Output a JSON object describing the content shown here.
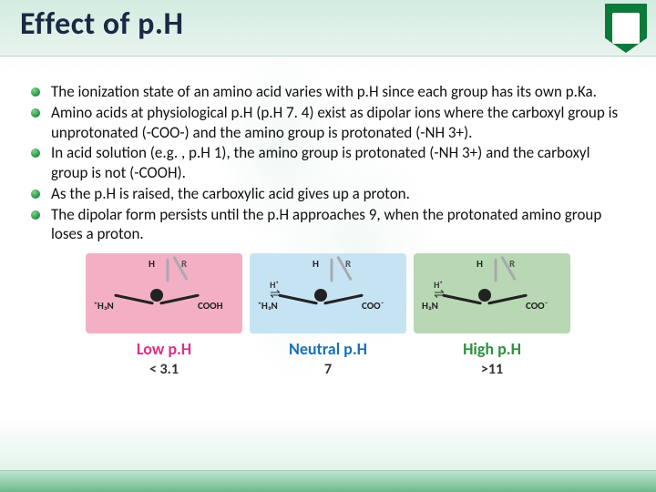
{
  "header": {
    "title": "Effect of p.H"
  },
  "bullets": [
    "The ionization state of an amino acid varies with p.H since each group has its own p.Ka.",
    "Amino acids at physiological p.H (p.H 7. 4) exist as dipolar ions where the carboxyl group is unprotonated (-COO-) and the amino group is protonated (-NH 3+).",
    "In acid solution (e.g. , p.H 1), the amino group is protonated (-NH 3+) and the carboxyl group is not (-COOH).",
    "As the p.H is raised, the carboxylic acid gives up a proton.",
    "The dipolar form persists until the p.H approaches 9, when the protonated amino group loses a proton."
  ],
  "diagram": {
    "type": "infographic",
    "panels": [
      {
        "key": "low",
        "bg": "#f3b0c4",
        "left": "⁺H₃N",
        "right": "COOH",
        "top_h": "H",
        "top_r": "R"
      },
      {
        "key": "neu",
        "bg": "#c6e3f4",
        "left": "⁺H₃N",
        "right": "COO⁻",
        "top_h": "H",
        "top_r": "R"
      },
      {
        "key": "high",
        "bg": "#b7d8b2",
        "left": "H₂N",
        "right": "COO⁻",
        "top_h": "H",
        "top_r": "R"
      }
    ],
    "equilibria": {
      "proton": "H⁺",
      "arrows": "⇌"
    },
    "row_labels": {
      "low": "Low p.H",
      "neu": "Neutral p.H",
      "high": "High p.H"
    },
    "row_values": {
      "low": "< 3.1",
      "neu": "7",
      "high": ">11"
    },
    "colors": {
      "low_label": "#d63384",
      "neu_label": "#1f6fb2",
      "high_label": "#2f8f3f",
      "bond": "#222222",
      "wedge": "#a9a9b0"
    }
  }
}
